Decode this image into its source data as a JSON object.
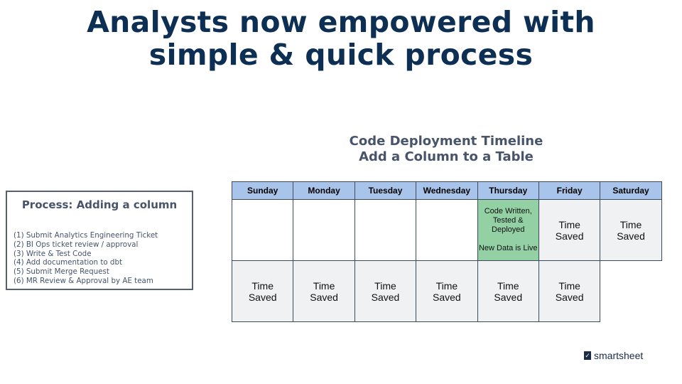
{
  "title_line1": "Analysts now empowered with",
  "title_line2": "simple & quick process",
  "timeline": {
    "title_line1": "Code Deployment Timeline",
    "title_line2": "Add a Column to a Table",
    "days": [
      "Sunday",
      "Monday",
      "Tuesday",
      "Wednesday",
      "Thursday",
      "Friday",
      "Saturday"
    ],
    "row1": [
      "",
      "",
      "",
      "",
      "Code Written, Tested & Deployed\n\nNew Data is Live",
      "Time Saved",
      "Time Saved"
    ],
    "row2": [
      "Time Saved",
      "Time Saved",
      "Time Saved",
      "Time Saved",
      "Time Saved",
      "Time Saved",
      ""
    ],
    "highlight_color": "#93d1a4",
    "header_color": "#a9c4ea"
  },
  "process": {
    "title": "Process: Adding a column",
    "steps": [
      "(1) Submit Analytics Engineering Ticket",
      "(2) BI Ops ticket review / approval",
      "(3) Write & Test Code",
      "(4) Add documentation to dbt",
      "(5) Submit Merge Request",
      "(6) MR Review & Approval by AE team"
    ]
  },
  "logo": {
    "text": "smartsheet"
  }
}
